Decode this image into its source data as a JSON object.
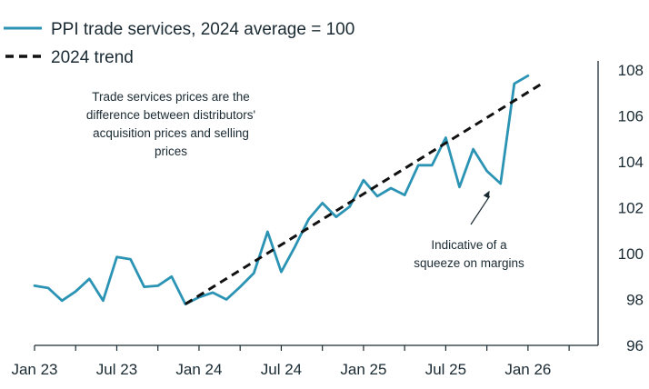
{
  "chart_data": {
    "type": "line",
    "title": "",
    "xlabel": "",
    "ylabel": "",
    "ylim": [
      96,
      108
    ],
    "y_ticks": [
      96,
      98,
      100,
      102,
      104,
      106,
      108
    ],
    "y_axis_side": "right",
    "x_tick_labels": [
      "Jan 23",
      "Jul 23",
      "Jan 24",
      "Jul 24",
      "Jan 25",
      "Jul 25",
      "Jan 26"
    ],
    "series": [
      {
        "name": "PPI trade services, 2024 average = 100",
        "style": "solid",
        "color": "#2b93b4",
        "values": [
          98.6,
          98.5,
          97.95,
          98.35,
          98.9,
          97.95,
          99.85,
          99.75,
          98.55,
          98.6,
          99.0,
          97.8,
          98.1,
          98.3,
          98.0,
          98.55,
          99.15,
          100.95,
          99.2,
          100.3,
          101.5,
          102.2,
          101.6,
          102.05,
          103.2,
          102.5,
          102.85,
          102.55,
          103.85,
          103.85,
          105.05,
          102.9,
          104.55,
          103.6,
          103.05,
          107.4,
          107.75
        ]
      },
      {
        "name": "2024 trend",
        "style": "dashed",
        "color": "#111111",
        "start_month_index": 11,
        "end_month_index": 37,
        "start_value": 97.8,
        "end_value": 107.4
      }
    ],
    "annotations": [
      {
        "id": "trade-services-note",
        "lines": [
          "Trade services prices are the",
          "difference between distributors'",
          "acquisition prices and selling",
          "prices"
        ]
      },
      {
        "id": "margin-squeeze-note",
        "lines": [
          "Indicative of a",
          "squeeze on margins"
        ],
        "arrow_target_month_index": 33.2,
        "arrow_target_value": 102.9
      }
    ]
  },
  "colors": {
    "series_line": "#2b93b4",
    "trend_line": "#111111",
    "text": "#1a2a33",
    "axis": "#1a2a33"
  }
}
